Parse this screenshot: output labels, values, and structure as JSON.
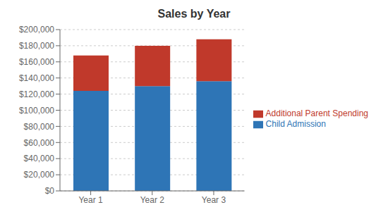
{
  "chart_data": {
    "type": "bar",
    "title": "Sales by Year",
    "categories": [
      "Year 1",
      "Year 2",
      "Year 3"
    ],
    "series": [
      {
        "name": "Child Admission",
        "color": "#2E75B6",
        "values": [
          124000,
          130000,
          136000
        ]
      },
      {
        "name": "Additional Parent Spending",
        "color": "#C0392B",
        "values": [
          44000,
          50000,
          52000
        ]
      }
    ],
    "stacked": true,
    "ylim": [
      0,
      200000
    ],
    "yticks": [
      {
        "value": 0,
        "label": "$0"
      },
      {
        "value": 20000,
        "label": "$20,000"
      },
      {
        "value": 40000,
        "label": "$40,000"
      },
      {
        "value": 60000,
        "label": "$60,000"
      },
      {
        "value": 80000,
        "label": "$80,000"
      },
      {
        "value": 100000,
        "label": "$100,000"
      },
      {
        "value": 120000,
        "label": "$120,000"
      },
      {
        "value": 140000,
        "label": "$140,000"
      },
      {
        "value": 160000,
        "label": "$160,000"
      },
      {
        "value": 180000,
        "label": "$180,000"
      },
      {
        "value": 200000,
        "label": "$200,000"
      }
    ],
    "grid": true,
    "legend": "right"
  }
}
